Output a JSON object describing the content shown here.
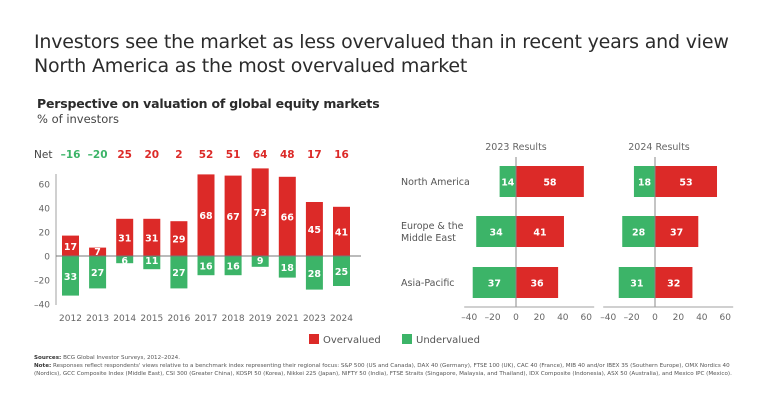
{
  "headline": "Investors see the market as less overvalued than in recent years and view North America as the most overvalued market",
  "headline_lines": [
    "Investors see the market as less overvalued than in recent years and view",
    "North America as the most overvalued market"
  ],
  "subtitle": "Perspective on valuation of global equity markets",
  "unit_label": "% of investors",
  "colors": {
    "overvalued": "#dc2a28",
    "undervalued": "#3cb468",
    "net_negative": "#3cb468",
    "net_positive": "#dc2a28",
    "axis": "#a0a0a0",
    "tick_text": "#666666"
  },
  "legend": {
    "overvalued": "Overvalued",
    "undervalued": "Undervalued"
  },
  "footer": {
    "sources_label": "Sources:",
    "sources_text": "BCG Global Investor Surveys, 2012–2024.",
    "note_label": "Note:",
    "note_text": "Responses reflect respondents' views relative to a benchmark index representing their regional focus: S&P 500 (US and Canada), DAX 40 (Germany), FTSE 100 (UK), CAC 40 (France), MIB 40 and/or IBEX 35 (Southern Europe), OMX Nordics 40 (Nordics), GCC Composite Index (Middle East), CSI 300 (Greater China), KOSPI 50 (Korea), Nikkei 225 (Japan), NIFTY 50 (India), FTSE Straits (Singapore, Malaysia, and Thailand), IDX Composite (Indonesia), ASX 50 (Australia), and Mexico IPC (Mexico)."
  },
  "chart_data": [
    {
      "type": "bar",
      "title": "Perspective on valuation of global equity markets",
      "ylabel": "% of investors",
      "net_label": "Net",
      "categories": [
        "2012",
        "2013",
        "2014",
        "2015",
        "2016",
        "2017",
        "2018",
        "2019",
        "2021",
        "2023",
        "2024"
      ],
      "series": [
        {
          "name": "Overvalued",
          "values": [
            17,
            7,
            31,
            31,
            29,
            68,
            67,
            73,
            66,
            45,
            41
          ]
        },
        {
          "name": "Undervalued",
          "values": [
            33,
            27,
            6,
            11,
            27,
            16,
            16,
            9,
            18,
            28,
            25
          ]
        }
      ],
      "net": [
        -16,
        -20,
        25,
        20,
        2,
        52,
        51,
        64,
        48,
        17,
        16
      ],
      "net_display": [
        "–16",
        "–20",
        "25",
        "20",
        "2",
        "52",
        "51",
        "64",
        "48",
        "17",
        "16"
      ],
      "ylim": [
        -40,
        70
      ],
      "yticks": [
        60,
        40,
        20,
        0,
        -20,
        -40
      ],
      "ytick_labels": [
        "60",
        "40",
        "20",
        "0",
        "–20",
        "–40"
      ],
      "legend": "bottom-right",
      "grid": false
    },
    {
      "type": "bar",
      "orientation": "horizontal",
      "title": "2023 Results",
      "categories": [
        [
          "North America"
        ],
        [
          "Europe & the",
          "Middle East"
        ],
        [
          "Asia-Pacific"
        ]
      ],
      "series": [
        {
          "name": "Overvalued",
          "values": [
            58,
            41,
            36
          ]
        },
        {
          "name": "Undervalued",
          "values": [
            14,
            34,
            37
          ]
        }
      ],
      "xlim": [
        -40,
        60
      ],
      "xticks": [
        -40,
        -20,
        0,
        20,
        40,
        60
      ],
      "xtick_labels": [
        "–40",
        "–20",
        "0",
        "20",
        "40",
        "60"
      ]
    },
    {
      "type": "bar",
      "orientation": "horizontal",
      "title": "2024 Results",
      "categories": [
        [
          "North America"
        ],
        [
          "Europe & the",
          "Middle East"
        ],
        [
          "Asia-Pacific"
        ]
      ],
      "series": [
        {
          "name": "Overvalued",
          "values": [
            53,
            37,
            32
          ]
        },
        {
          "name": "Undervalued",
          "values": [
            18,
            28,
            31
          ]
        }
      ],
      "xlim": [
        -40,
        60
      ],
      "xticks": [
        -40,
        -20,
        0,
        20,
        40,
        60
      ],
      "xtick_labels": [
        "–40",
        "–20",
        "0",
        "20",
        "40",
        "60"
      ]
    }
  ]
}
